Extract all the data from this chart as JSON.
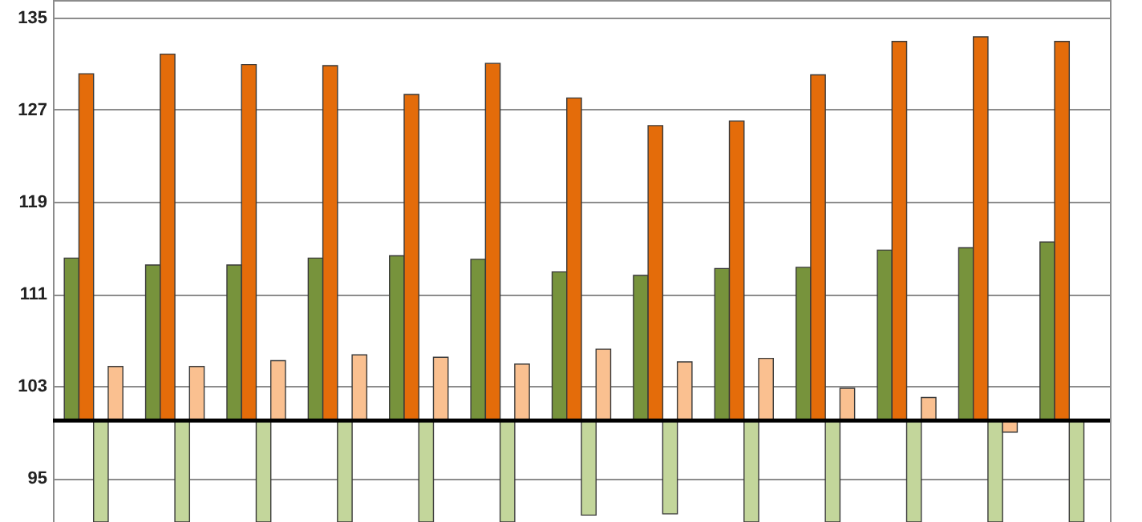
{
  "chart_data": {
    "type": "bar",
    "categories": [
      null,
      null,
      null,
      null,
      null,
      null,
      null,
      null,
      null,
      null,
      null,
      null,
      null
    ],
    "series": [
      {
        "color": "#77933c",
        "base": [
          100,
          100,
          100,
          100,
          100,
          100,
          100,
          100,
          100,
          100,
          100,
          100,
          100
        ],
        "values": [
          14.1,
          13.5,
          13.5,
          14.1,
          14.3,
          14.0,
          12.9,
          12.6,
          13.2,
          13.3,
          14.8,
          15.0,
          15.5
        ]
      },
      {
        "color": "#e46c0a",
        "base": [
          100,
          100,
          100,
          100,
          100,
          100,
          100,
          100,
          100,
          100,
          100,
          100,
          100
        ],
        "values": [
          30.1,
          31.8,
          30.9,
          30.8,
          28.3,
          31.0,
          28.0,
          25.6,
          26.0,
          30.0,
          32.9,
          33.3,
          32.9
        ]
      },
      {
        "color": "#c3d69b",
        "base": [
          100,
          100,
          100,
          100,
          100,
          100,
          100,
          100,
          100,
          100,
          100,
          100,
          100
        ],
        "values": [
          -8.8,
          -8.8,
          -8.8,
          -8.8,
          -8.8,
          -8.8,
          -8.2,
          -8.1,
          -8.8,
          -8.8,
          -8.8,
          -8.8,
          -8.8
        ]
      },
      {
        "color": "#fac090",
        "base": [
          100,
          100,
          100,
          100,
          100,
          100,
          100,
          100,
          100,
          100,
          100,
          100,
          null
        ],
        "values": [
          4.7,
          4.7,
          5.2,
          5.7,
          5.5,
          4.9,
          6.2,
          5.1,
          5.4,
          2.8,
          2.0,
          -1.0,
          null
        ]
      }
    ],
    "ylim": [
      91.2,
      136.5
    ],
    "yticks": [
      95,
      103,
      111,
      119,
      127,
      135
    ],
    "grid": "y",
    "tick_labels": "y",
    "ref_lines": [
      {
        "axis": "y",
        "value": 100,
        "color": "#000000"
      }
    ]
  }
}
